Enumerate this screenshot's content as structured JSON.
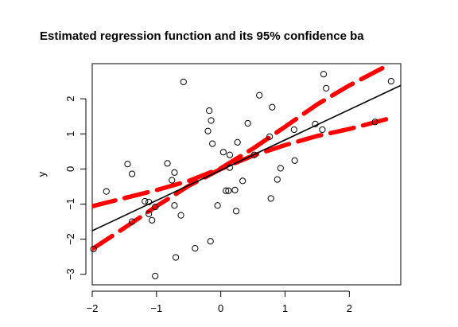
{
  "chart_data": {
    "type": "scatter",
    "title": "Estimated regression function and its 95% confidence ba",
    "xlabel": "",
    "ylabel": "y",
    "xlim": [
      -2.0,
      2.8
    ],
    "ylim": [
      -3.3,
      3.0
    ],
    "x_ticks": [
      -2,
      -1,
      0,
      1,
      2
    ],
    "x_tick_labels": [
      "−2",
      "−1",
      "0",
      "1",
      "2"
    ],
    "y_ticks": [
      -3,
      -2,
      -1,
      0,
      1,
      2
    ],
    "y_tick_labels": [
      "−3",
      "−2",
      "−1",
      "0",
      "1",
      "2"
    ],
    "grid": false,
    "colors": {
      "points": "#000000",
      "fit_line": "#000000",
      "confidence_band": "#ff0000"
    },
    "points": [
      {
        "x": -1.98,
        "y": -2.28
      },
      {
        "x": -1.78,
        "y": -0.64
      },
      {
        "x": -1.45,
        "y": 0.14
      },
      {
        "x": -1.38,
        "y": -0.14
      },
      {
        "x": -1.38,
        "y": -1.5
      },
      {
        "x": -1.18,
        "y": -0.92
      },
      {
        "x": -1.12,
        "y": -1.28
      },
      {
        "x": -1.12,
        "y": -0.94
      },
      {
        "x": -1.07,
        "y": -1.46
      },
      {
        "x": -1.02,
        "y": -1.08
      },
      {
        "x": -1.02,
        "y": -3.05
      },
      {
        "x": -0.83,
        "y": 0.16
      },
      {
        "x": -0.76,
        "y": -0.32
      },
      {
        "x": -0.72,
        "y": -0.1
      },
      {
        "x": -0.72,
        "y": -1.04
      },
      {
        "x": -0.7,
        "y": -2.52
      },
      {
        "x": -0.62,
        "y": -1.32
      },
      {
        "x": -0.58,
        "y": 2.48
      },
      {
        "x": -0.4,
        "y": -2.26
      },
      {
        "x": -0.2,
        "y": 1.08
      },
      {
        "x": -0.18,
        "y": 1.66
      },
      {
        "x": -0.16,
        "y": -2.06
      },
      {
        "x": -0.15,
        "y": 1.38
      },
      {
        "x": -0.13,
        "y": 0.72
      },
      {
        "x": -0.05,
        "y": -1.04
      },
      {
        "x": 0.04,
        "y": 0.48
      },
      {
        "x": 0.08,
        "y": -0.62
      },
      {
        "x": 0.12,
        "y": -0.62
      },
      {
        "x": 0.14,
        "y": 0.04
      },
      {
        "x": 0.14,
        "y": 0.4
      },
      {
        "x": 0.22,
        "y": -0.6
      },
      {
        "x": 0.24,
        "y": -1.2
      },
      {
        "x": 0.26,
        "y": 0.76
      },
      {
        "x": 0.34,
        "y": -0.34
      },
      {
        "x": 0.42,
        "y": 1.3
      },
      {
        "x": 0.52,
        "y": 0.4
      },
      {
        "x": 0.6,
        "y": 2.1
      },
      {
        "x": 0.76,
        "y": 0.92
      },
      {
        "x": 0.78,
        "y": -0.84
      },
      {
        "x": 0.8,
        "y": 1.76
      },
      {
        "x": 0.88,
        "y": -0.3
      },
      {
        "x": 0.93,
        "y": 0.02
      },
      {
        "x": 1.14,
        "y": 1.12
      },
      {
        "x": 1.15,
        "y": 0.24
      },
      {
        "x": 1.47,
        "y": 1.28
      },
      {
        "x": 1.58,
        "y": 1.12
      },
      {
        "x": 1.6,
        "y": 2.7
      },
      {
        "x": 1.64,
        "y": 2.3
      },
      {
        "x": 2.4,
        "y": 1.34
      },
      {
        "x": 2.65,
        "y": 2.5
      }
    ],
    "fit_line": [
      {
        "x": -2.0,
        "y": -1.76
      },
      {
        "x": 2.8,
        "y": 2.38
      }
    ],
    "confidence_upper": [
      {
        "x": -2.0,
        "y": -1.06
      },
      {
        "x": -1.0,
        "y": -0.6
      },
      {
        "x": -0.5,
        "y": -0.34
      },
      {
        "x": 0.0,
        "y": 0.02
      },
      {
        "x": 0.5,
        "y": 0.58
      },
      {
        "x": 1.0,
        "y": 1.2
      },
      {
        "x": 1.5,
        "y": 1.84
      },
      {
        "x": 2.0,
        "y": 2.38
      },
      {
        "x": 2.5,
        "y": 2.86
      },
      {
        "x": 2.62,
        "y": 2.98
      }
    ],
    "confidence_lower": [
      {
        "x": -2.0,
        "y": -2.28
      },
      {
        "x": -1.5,
        "y": -1.68
      },
      {
        "x": -1.0,
        "y": -1.06
      },
      {
        "x": -0.5,
        "y": -0.48
      },
      {
        "x": 0.0,
        "y": 0.0
      },
      {
        "x": 0.5,
        "y": 0.38
      },
      {
        "x": 1.0,
        "y": 0.68
      },
      {
        "x": 1.5,
        "y": 0.94
      },
      {
        "x": 2.0,
        "y": 1.14
      },
      {
        "x": 2.5,
        "y": 1.38
      },
      {
        "x": 2.62,
        "y": 1.44
      }
    ]
  }
}
